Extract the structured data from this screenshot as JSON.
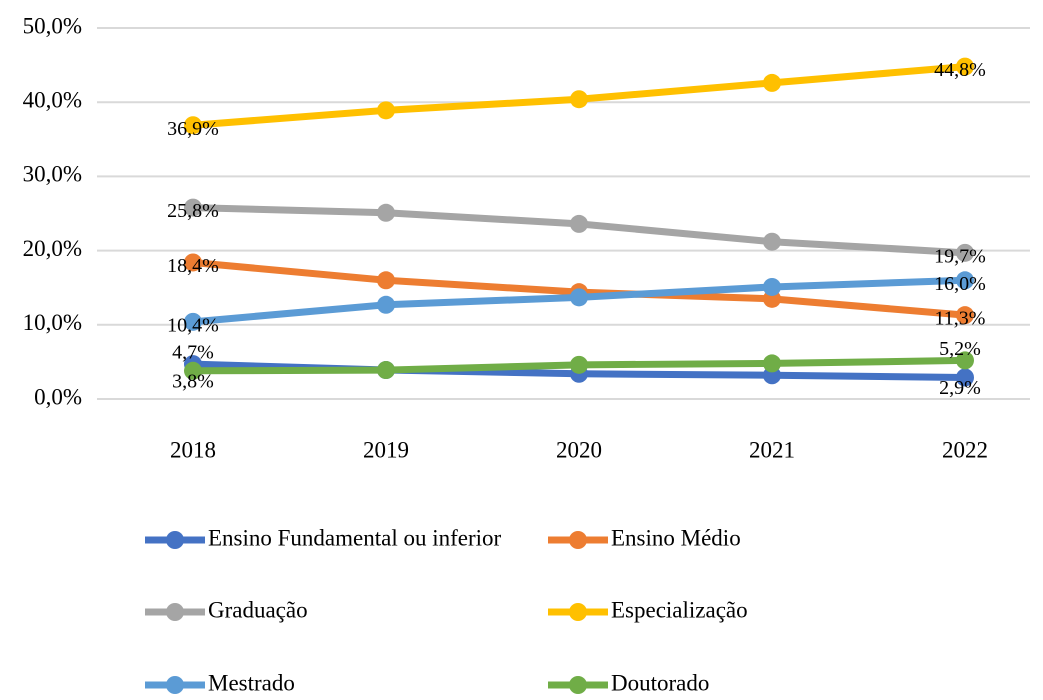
{
  "chart_data": {
    "type": "line",
    "categories": [
      "2018",
      "2019",
      "2020",
      "2021",
      "2022"
    ],
    "series": [
      {
        "name": "Ensino Fundamental ou inferior",
        "color": "#4472c4",
        "values": [
          4.7,
          3.9,
          3.4,
          3.2,
          2.9
        ],
        "value_labels": [
          "4,7%",
          null,
          null,
          null,
          "2,9%"
        ]
      },
      {
        "name": "Ensino Médio",
        "color": "#ed7d31",
        "values": [
          18.4,
          16.0,
          14.4,
          13.5,
          11.3
        ],
        "value_labels": [
          "18,4%",
          null,
          null,
          null,
          "11,3%"
        ]
      },
      {
        "name": "Graduação",
        "color": "#a5a5a5",
        "values": [
          25.8,
          25.1,
          23.6,
          21.2,
          19.7
        ],
        "value_labels": [
          "25,8%",
          null,
          null,
          null,
          "19,7%"
        ]
      },
      {
        "name": "Especialização",
        "color": "#ffc000",
        "values": [
          36.9,
          38.9,
          40.4,
          42.6,
          44.8
        ],
        "value_labels": [
          "36,9%",
          null,
          null,
          null,
          "44,8%"
        ]
      },
      {
        "name": "Mestrado",
        "color": "#5b9bd5",
        "values": [
          10.4,
          12.7,
          13.7,
          15.1,
          16.0
        ],
        "value_labels": [
          "10,4%",
          null,
          null,
          null,
          "16,0%"
        ]
      },
      {
        "name": "Doutorado",
        "color": "#70ad47",
        "values": [
          3.8,
          3.9,
          4.6,
          4.8,
          5.2
        ],
        "value_labels": [
          "3,8%",
          null,
          null,
          null,
          "5,2%"
        ]
      }
    ],
    "ylim": [
      0,
      50
    ],
    "yticks": [
      {
        "value": 0,
        "label": "0,0%"
      },
      {
        "value": 10,
        "label": "10,0%"
      },
      {
        "value": 20,
        "label": "20,0%"
      },
      {
        "value": 30,
        "label": "30,0%"
      },
      {
        "value": 40,
        "label": "40,0%"
      },
      {
        "value": 50,
        "label": "50,0%"
      }
    ],
    "grid": true,
    "legend": "bottom"
  }
}
